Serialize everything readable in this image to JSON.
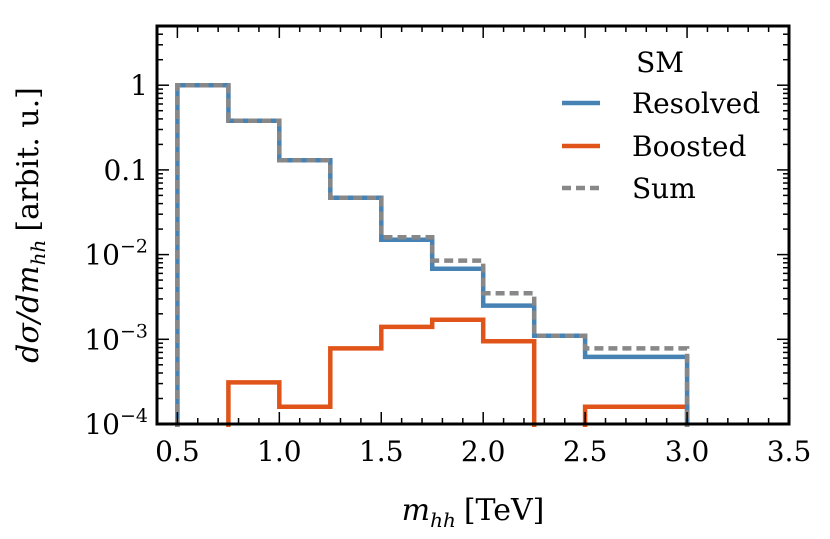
{
  "chart_data": {
    "type": "line",
    "style": "step-histogram",
    "xlabel": "m_hh [TeV]",
    "xlabel_parts": {
      "var": "m",
      "sub": "hh",
      "unit": "[TeV]"
    },
    "ylabel": "dσ/dm_hh [arbit. u.]",
    "ylabel_parts": {
      "pre": "dσ/dm",
      "sub": "hh",
      "unit": "[arbit. u.]"
    },
    "xlim": [
      0.4,
      3.5
    ],
    "ylim": [
      0.0001,
      5
    ],
    "yscale": "log",
    "grid": false,
    "legend_position": "top-right",
    "legend_title": "SM",
    "x_ticks": [
      0.5,
      1.0,
      1.5,
      2.0,
      2.5,
      3.0,
      3.5
    ],
    "x_tick_labels": [
      "0.5",
      "1.0",
      "1.5",
      "2.0",
      "2.5",
      "3.0",
      "3.5"
    ],
    "y_ticks": [
      {
        "value": 1,
        "label": "1"
      },
      {
        "value": 0.1,
        "label": "0.1"
      },
      {
        "value": 0.01,
        "base": "10",
        "exp": "−2"
      },
      {
        "value": 0.001,
        "base": "10",
        "exp": "−3"
      },
      {
        "value": 0.0001,
        "base": "10",
        "exp": "−4"
      }
    ],
    "bin_edges": [
      0.5,
      0.75,
      1.0,
      1.25,
      1.5,
      1.75,
      2.0,
      2.25,
      2.5,
      3.0
    ],
    "series": [
      {
        "name": "Resolved",
        "color": "#4682b4",
        "dash": "solid",
        "values": [
          1.0,
          0.38,
          0.13,
          0.047,
          0.015,
          0.0068,
          0.0025,
          0.0011,
          0.00062
        ]
      },
      {
        "name": "Boosted",
        "color": "#e0541a",
        "dash": "solid",
        "values": [
          null,
          0.00031,
          0.00016,
          0.00078,
          0.0014,
          0.0017,
          0.00095,
          null,
          0.00016
        ]
      },
      {
        "name": "Sum",
        "color": "#888888",
        "dash": "dashed",
        "values": [
          1.0,
          0.38,
          0.13,
          0.047,
          0.016,
          0.0085,
          0.0035,
          0.0011,
          0.00078
        ]
      }
    ]
  }
}
